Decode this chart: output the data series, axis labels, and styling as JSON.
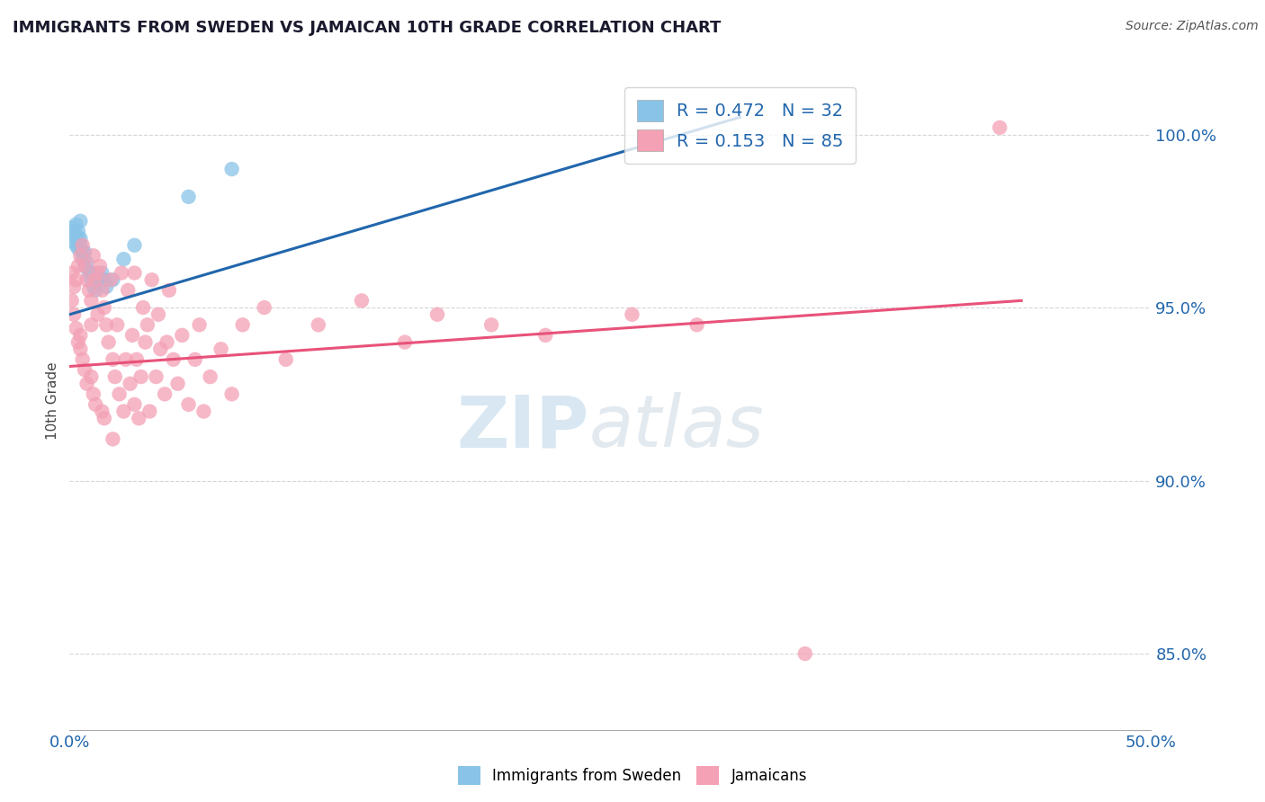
{
  "title": "IMMIGRANTS FROM SWEDEN VS JAMAICAN 10TH GRADE CORRELATION CHART",
  "source": "Source: ZipAtlas.com",
  "ylabel": "10th Grade",
  "ytick_labels": [
    "85.0%",
    "90.0%",
    "95.0%",
    "100.0%"
  ],
  "ytick_values": [
    0.85,
    0.9,
    0.95,
    1.0
  ],
  "xlim": [
    0.0,
    0.5
  ],
  "ylim": [
    0.828,
    1.018
  ],
  "xtick_labels": [
    "0.0%",
    "50.0%"
  ],
  "xtick_values": [
    0.0,
    0.5
  ],
  "legend_blue_label": "R = 0.472   N = 32",
  "legend_pink_label": "R = 0.153   N = 85",
  "blue_color": "#89C4E8",
  "pink_color": "#F4A0B5",
  "blue_line_color": "#2166AC",
  "pink_line_color": "#E8527A",
  "watermark_zip": "ZIP",
  "watermark_atlas": "atlas",
  "bottom_legend_blue": "Immigrants from Sweden",
  "bottom_legend_pink": "Jamaicans",
  "blue_scatter_x": [
    0.001,
    0.001,
    0.002,
    0.002,
    0.003,
    0.003,
    0.003,
    0.004,
    0.004,
    0.004,
    0.005,
    0.005,
    0.005,
    0.006,
    0.006,
    0.007,
    0.007,
    0.008,
    0.009,
    0.01,
    0.01,
    0.011,
    0.012,
    0.013,
    0.015,
    0.016,
    0.017,
    0.02,
    0.025,
    0.03,
    0.055,
    0.075
  ],
  "blue_scatter_y": [
    0.971,
    0.973,
    0.969,
    0.972,
    0.971,
    0.968,
    0.974,
    0.97,
    0.972,
    0.967,
    0.975,
    0.97,
    0.968,
    0.966,
    0.964,
    0.966,
    0.962,
    0.963,
    0.96,
    0.96,
    0.958,
    0.956,
    0.955,
    0.958,
    0.96,
    0.958,
    0.956,
    0.958,
    0.964,
    0.968,
    0.982,
    0.99
  ],
  "pink_scatter_x": [
    0.001,
    0.001,
    0.002,
    0.002,
    0.003,
    0.003,
    0.004,
    0.004,
    0.005,
    0.005,
    0.005,
    0.006,
    0.006,
    0.007,
    0.007,
    0.008,
    0.008,
    0.009,
    0.01,
    0.01,
    0.01,
    0.011,
    0.011,
    0.012,
    0.012,
    0.013,
    0.013,
    0.014,
    0.015,
    0.015,
    0.016,
    0.016,
    0.017,
    0.018,
    0.019,
    0.02,
    0.02,
    0.021,
    0.022,
    0.023,
    0.024,
    0.025,
    0.026,
    0.027,
    0.028,
    0.029,
    0.03,
    0.03,
    0.031,
    0.032,
    0.033,
    0.034,
    0.035,
    0.036,
    0.037,
    0.038,
    0.04,
    0.041,
    0.042,
    0.044,
    0.045,
    0.046,
    0.048,
    0.05,
    0.052,
    0.055,
    0.058,
    0.06,
    0.062,
    0.065,
    0.07,
    0.075,
    0.08,
    0.09,
    0.1,
    0.115,
    0.135,
    0.155,
    0.17,
    0.195,
    0.22,
    0.26,
    0.29,
    0.34,
    0.43
  ],
  "pink_scatter_y": [
    0.96,
    0.952,
    0.956,
    0.948,
    0.958,
    0.944,
    0.962,
    0.94,
    0.965,
    0.942,
    0.938,
    0.968,
    0.935,
    0.962,
    0.932,
    0.958,
    0.928,
    0.955,
    0.952,
    0.945,
    0.93,
    0.965,
    0.925,
    0.958,
    0.922,
    0.96,
    0.948,
    0.962,
    0.955,
    0.92,
    0.95,
    0.918,
    0.945,
    0.94,
    0.958,
    0.935,
    0.912,
    0.93,
    0.945,
    0.925,
    0.96,
    0.92,
    0.935,
    0.955,
    0.928,
    0.942,
    0.922,
    0.96,
    0.935,
    0.918,
    0.93,
    0.95,
    0.94,
    0.945,
    0.92,
    0.958,
    0.93,
    0.948,
    0.938,
    0.925,
    0.94,
    0.955,
    0.935,
    0.928,
    0.942,
    0.922,
    0.935,
    0.945,
    0.92,
    0.93,
    0.938,
    0.925,
    0.945,
    0.95,
    0.935,
    0.945,
    0.952,
    0.94,
    0.948,
    0.945,
    0.942,
    0.948,
    0.945,
    0.85,
    1.002
  ],
  "blue_line_x": [
    0.0,
    0.31
  ],
  "blue_line_y": [
    0.948,
    1.005
  ],
  "pink_line_x": [
    0.0,
    0.44
  ],
  "pink_line_y": [
    0.933,
    0.952
  ],
  "title_color": "#1a1a2e",
  "tick_color": "#2166AC",
  "grid_color": "#cccccc",
  "background_color": "#ffffff"
}
